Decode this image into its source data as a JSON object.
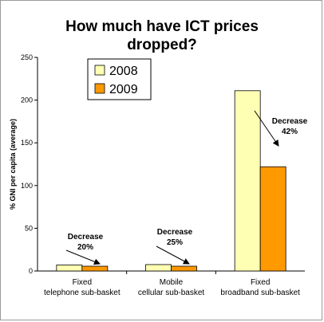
{
  "chart_data": {
    "type": "bar",
    "title_lines": [
      "How much have ICT prices",
      "dropped?"
    ],
    "ylabel": "% GNI per capita (average)",
    "ylim": [
      0,
      250
    ],
    "yticks": [
      "0",
      "50",
      "100",
      "150",
      "200",
      "250"
    ],
    "categories": [
      [
        "Fixed",
        "telephone sub-basket"
      ],
      [
        "Mobile",
        "cellular sub-basket"
      ],
      [
        "Fixed",
        "broadband sub-basket"
      ]
    ],
    "series": [
      {
        "name": "2008",
        "color": "#FFFFB3",
        "values": [
          7,
          7.5,
          211
        ]
      },
      {
        "name": "2009",
        "color": "#FF9900",
        "values": [
          5.6,
          5.6,
          122
        ]
      }
    ],
    "annotations": [
      {
        "lines": [
          "Decrease",
          "20%"
        ]
      },
      {
        "lines": [
          "Decrease",
          "25%"
        ]
      },
      {
        "lines": [
          "Decrease",
          "42%"
        ]
      }
    ],
    "legend_position": "top-left"
  }
}
